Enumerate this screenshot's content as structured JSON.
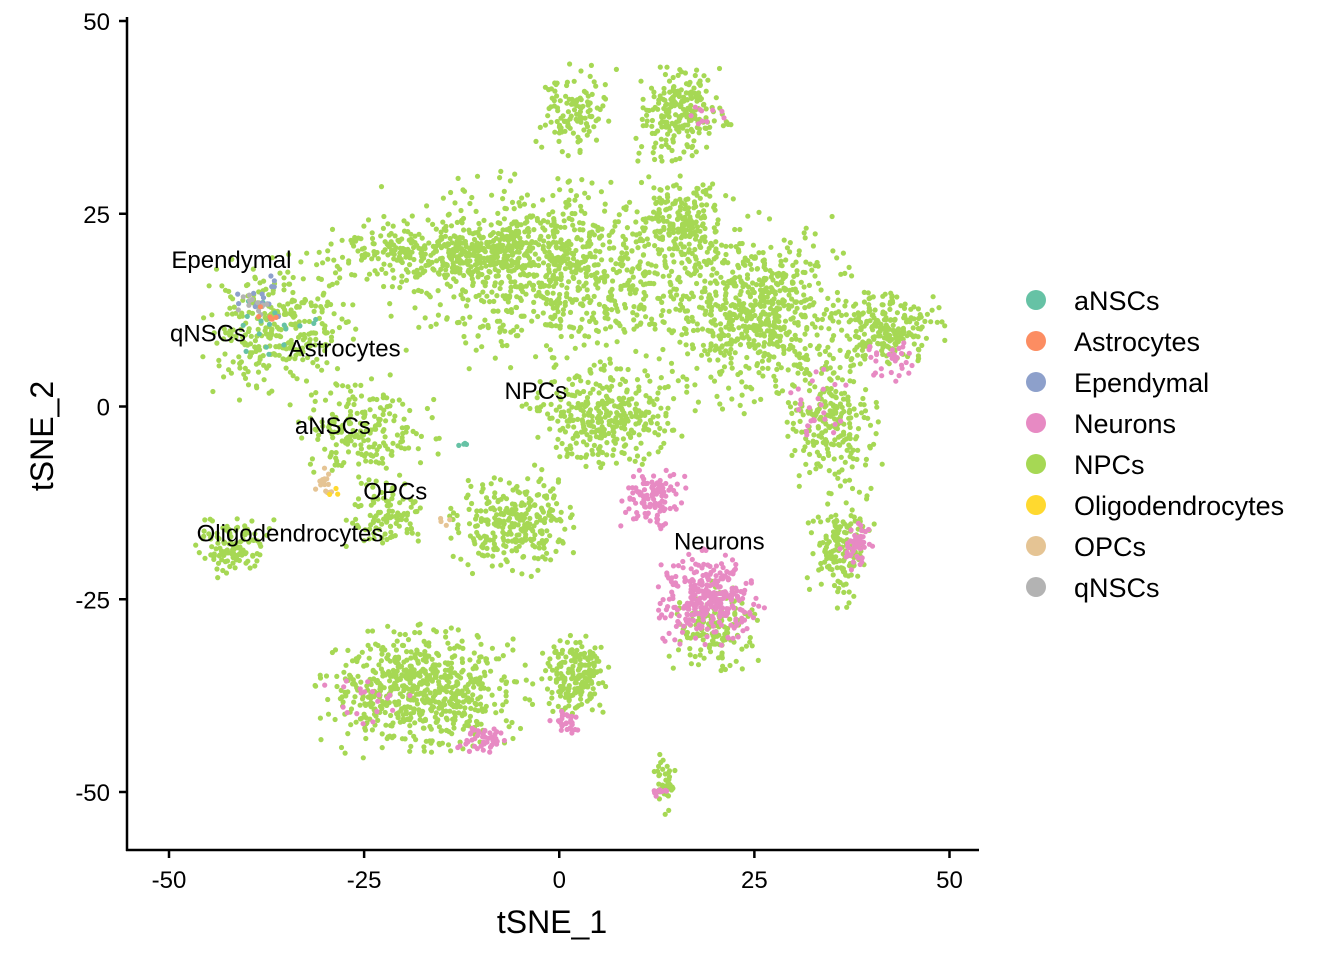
{
  "chart_data": {
    "type": "scatter",
    "xlabel": "tSNE_1",
    "ylabel": "tSNE_2",
    "xlim": [
      -55,
      54
    ],
    "ylim": [
      -57,
      50
    ],
    "x_ticks": [
      -50,
      -25,
      0,
      25,
      50
    ],
    "y_ticks": [
      50,
      25,
      0,
      -25,
      -50
    ],
    "grid": false,
    "legend_position": "right",
    "series": [
      {
        "name": "aNSCs",
        "color": "#66C2A5"
      },
      {
        "name": "Astrocytes",
        "color": "#FC8D62"
      },
      {
        "name": "Ependymal",
        "color": "#8DA0CB"
      },
      {
        "name": "Neurons",
        "color": "#E78AC3"
      },
      {
        "name": "NPCs",
        "color": "#A6D854"
      },
      {
        "name": "Oligodendrocytes",
        "color": "#FFD92F"
      },
      {
        "name": "OPCs",
        "color": "#E5C494"
      },
      {
        "name": "qNSCs",
        "color": "#B3B3B3"
      }
    ],
    "cluster_labels": [
      {
        "text": "Ependymal",
        "x": -42,
        "y": 19
      },
      {
        "text": "qNSCs",
        "x": -45,
        "y": 9.5
      },
      {
        "text": "Astrocytes",
        "x": -27.5,
        "y": 7.5
      },
      {
        "text": "NPCs",
        "x": -3,
        "y": 2
      },
      {
        "text": "aNSCs",
        "x": -29,
        "y": -2.5
      },
      {
        "text": "OPCs",
        "x": -21,
        "y": -11
      },
      {
        "text": "Oligodendrocytes",
        "x": -34.5,
        "y": -16.5
      },
      {
        "text": "Neurons",
        "x": 20.5,
        "y": -17.5
      }
    ],
    "clusters": [
      {
        "series": "NPCs",
        "cx": -1,
        "cy": 18,
        "rx": 20,
        "ry": 12,
        "n": 900
      },
      {
        "series": "NPCs",
        "cx": 2,
        "cy": 38,
        "rx": 5,
        "ry": 6,
        "n": 120
      },
      {
        "series": "NPCs",
        "cx": 16,
        "cy": 38,
        "rx": 6,
        "ry": 6,
        "n": 220
      },
      {
        "series": "NPCs",
        "cx": 16,
        "cy": 24,
        "rx": 6,
        "ry": 6,
        "n": 180
      },
      {
        "series": "NPCs",
        "cx": 25,
        "cy": 12,
        "rx": 12,
        "ry": 12,
        "n": 650
      },
      {
        "series": "NPCs",
        "cx": 42,
        "cy": 10,
        "rx": 7,
        "ry": 5,
        "n": 220
      },
      {
        "series": "NPCs",
        "cx": 35,
        "cy": -2,
        "rx": 6,
        "ry": 8,
        "n": 220
      },
      {
        "series": "NPCs",
        "cx": 36,
        "cy": -18,
        "rx": 4,
        "ry": 8,
        "n": 160
      },
      {
        "series": "NPCs",
        "cx": -15,
        "cy": 20,
        "rx": 15,
        "ry": 4,
        "n": 350
      },
      {
        "series": "NPCs",
        "cx": -36,
        "cy": 10,
        "rx": 10,
        "ry": 9,
        "n": 300
      },
      {
        "series": "NPCs",
        "cx": -25,
        "cy": -3,
        "rx": 9,
        "ry": 7,
        "n": 200
      },
      {
        "series": "NPCs",
        "cx": -42,
        "cy": -18,
        "rx": 5,
        "ry": 4,
        "n": 120
      },
      {
        "series": "NPCs",
        "cx": -22,
        "cy": -14,
        "rx": 5,
        "ry": 4,
        "n": 100
      },
      {
        "series": "NPCs",
        "cx": -6,
        "cy": -15,
        "rx": 8,
        "ry": 7,
        "n": 300
      },
      {
        "series": "NPCs",
        "cx": 6,
        "cy": -1,
        "rx": 10,
        "ry": 7,
        "n": 350
      },
      {
        "series": "NPCs",
        "cx": -17,
        "cy": -37,
        "rx": 13,
        "ry": 8,
        "n": 650
      },
      {
        "series": "NPCs",
        "cx": 2,
        "cy": -35,
        "rx": 4,
        "ry": 5,
        "n": 200
      },
      {
        "series": "NPCs",
        "cx": 20,
        "cy": -29,
        "rx": 6,
        "ry": 6,
        "n": 150
      },
      {
        "series": "NPCs",
        "cx": 13.5,
        "cy": -49,
        "rx": 1.5,
        "ry": 4,
        "n": 40
      },
      {
        "series": "Neurons",
        "cx": 19,
        "cy": -25,
        "rx": 7,
        "ry": 6,
        "n": 300
      },
      {
        "series": "Neurons",
        "cx": 12,
        "cy": -12,
        "rx": 4,
        "ry": 4,
        "n": 110
      },
      {
        "series": "Neurons",
        "cx": 38,
        "cy": -18,
        "rx": 2,
        "ry": 3,
        "n": 50
      },
      {
        "series": "Neurons",
        "cx": -10,
        "cy": -43,
        "rx": 3,
        "ry": 2,
        "n": 45
      },
      {
        "series": "Neurons",
        "cx": 1,
        "cy": -41,
        "rx": 2,
        "ry": 2,
        "n": 30
      },
      {
        "series": "Neurons",
        "cx": 42,
        "cy": 6,
        "rx": 4,
        "ry": 4,
        "n": 30
      },
      {
        "series": "Neurons",
        "cx": 33,
        "cy": 0,
        "rx": 4,
        "ry": 6,
        "n": 25
      },
      {
        "series": "Neurons",
        "cx": 13,
        "cy": -50,
        "rx": 1,
        "ry": 1,
        "n": 12
      },
      {
        "series": "Neurons",
        "cx": -25,
        "cy": -38,
        "rx": 6,
        "ry": 4,
        "n": 20
      },
      {
        "series": "Neurons",
        "cx": 19,
        "cy": 38,
        "rx": 2,
        "ry": 2,
        "n": 10
      },
      {
        "series": "aNSCs",
        "cx": -36,
        "cy": 11,
        "rx": 5,
        "ry": 4,
        "n": 18
      },
      {
        "series": "aNSCs",
        "cx": -12.5,
        "cy": -5,
        "rx": 0.6,
        "ry": 0.5,
        "n": 4
      },
      {
        "series": "Ependymal",
        "cx": -38,
        "cy": 14,
        "rx": 5,
        "ry": 3,
        "n": 15
      },
      {
        "series": "qNSCs",
        "cx": -39,
        "cy": 13,
        "rx": 3,
        "ry": 2,
        "n": 12
      },
      {
        "series": "Astrocytes",
        "cx": -37,
        "cy": 12,
        "rx": 2,
        "ry": 2,
        "n": 6
      },
      {
        "series": "OPCs",
        "cx": -30,
        "cy": -10,
        "rx": 1.2,
        "ry": 2,
        "n": 18
      },
      {
        "series": "OPCs",
        "cx": -15,
        "cy": -15,
        "rx": 1,
        "ry": 1,
        "n": 4
      },
      {
        "series": "Oligodendrocytes",
        "cx": -29,
        "cy": -11,
        "rx": 1,
        "ry": 1,
        "n": 3
      }
    ]
  }
}
